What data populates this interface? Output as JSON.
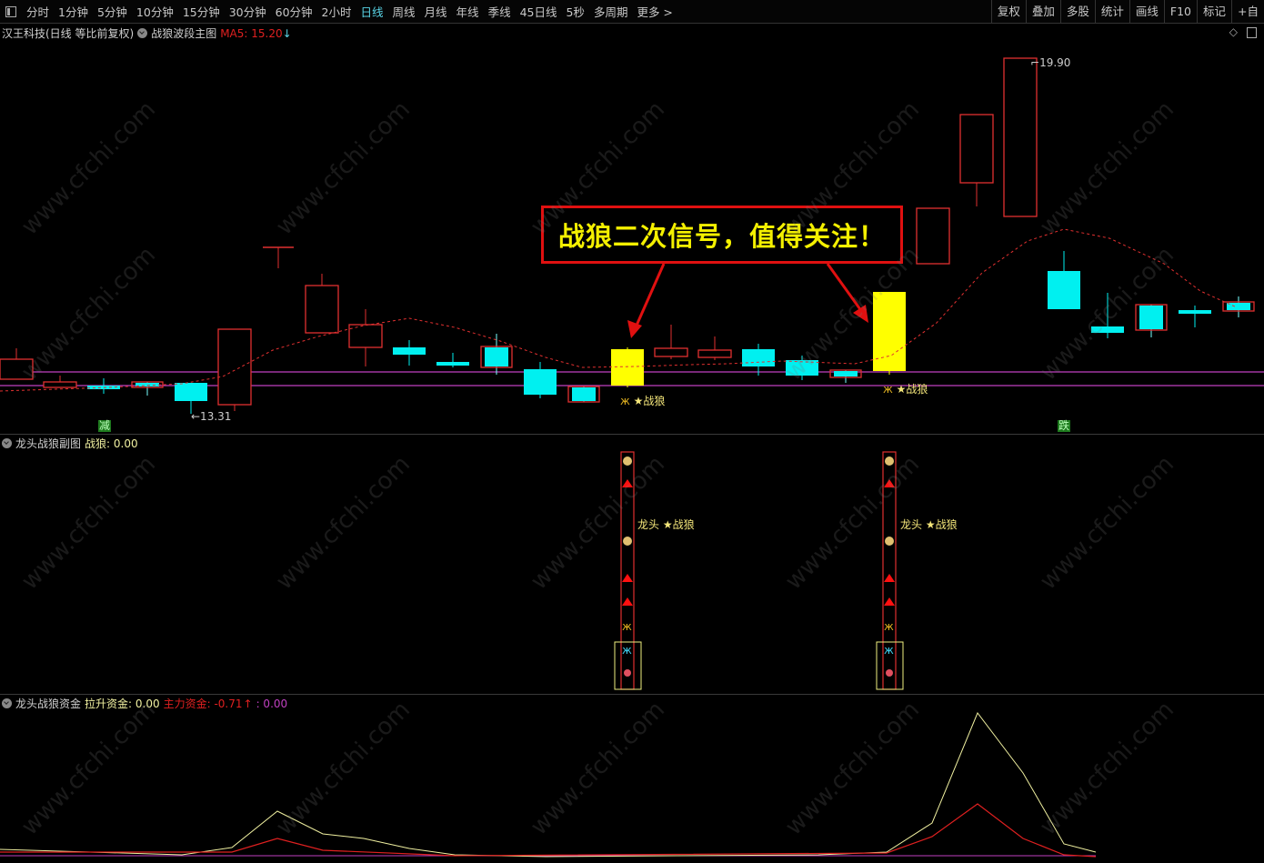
{
  "toolbar": {
    "periods": [
      "分时",
      "1分钟",
      "5分钟",
      "10分钟",
      "15分钟",
      "30分钟",
      "60分钟",
      "2小时",
      "日线",
      "周线",
      "月线",
      "年线",
      "季线",
      "45日线",
      "5秒",
      "多周期",
      "更多 >"
    ],
    "active_period": "日线",
    "right_buttons": [
      "复权",
      "叠加",
      "多股",
      "统计",
      "画线",
      "F10",
      "标记",
      "+自"
    ]
  },
  "main_panel": {
    "stock": "汉王科技(日线 等比前复权)",
    "indicator": "战狼波段主图",
    "ma_label": "MA5: 15.20",
    "ma_arrow": "↓",
    "high_label": "19.90",
    "low_label": "←13.31",
    "callout": "战狼二次信号，值得关注！",
    "signal_labels": [
      "★战狼",
      "★战狼"
    ],
    "marker_left": "减",
    "marker_right": "跌"
  },
  "sub_panel": {
    "title": "龙头战狼副图",
    "value_label": "战狼: 0.00",
    "signal_labels": [
      "龙头 ★战狼",
      "龙头 ★战狼"
    ]
  },
  "fund_panel": {
    "title": "龙头战狼资金",
    "lift_label": "拉升资金: 0.00",
    "main_label": "主力资金: -0.71",
    "main_arrow": "↑",
    "other_label": ": 0.00"
  },
  "colors": {
    "up": "#e03030",
    "down": "#00f0f0",
    "signal": "#ffff00",
    "ma": "#e03030",
    "band": "#c040c0",
    "lift": "#f0f0a0",
    "main": "#e02020",
    "background": "#000000"
  },
  "watermark": "www.cfchi.com"
}
